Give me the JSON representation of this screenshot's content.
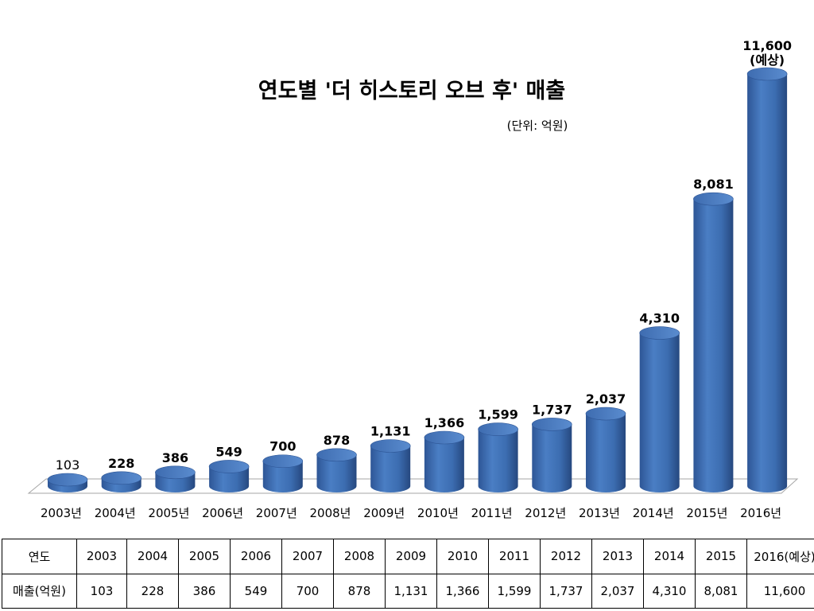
{
  "chart_data": {
    "type": "bar",
    "title": "연도별 '더 히스토리 오브 후' 매출",
    "unit_note": "(단위: 억원)",
    "categories": [
      "2003년",
      "2004년",
      "2005년",
      "2006년",
      "2007년",
      "2008년",
      "2009년",
      "2010년",
      "2011년",
      "2012년",
      "2013년",
      "2014년",
      "2015년",
      "2016년"
    ],
    "series": [
      {
        "values": [
          103,
          228,
          386,
          549,
          700,
          878,
          1131,
          1366,
          1599,
          1737,
          2037,
          4310,
          8081,
          11600
        ]
      }
    ],
    "data_labels": [
      "103",
      "228",
      "386",
      "549",
      "700",
      "878",
      "1,131",
      "1,366",
      "1,599",
      "1,737",
      "2,037",
      "4,310",
      "8,081",
      "11,600"
    ],
    "last_label_note": "(예상)",
    "ylim": [
      0,
      11600
    ],
    "bar_color": "#3f6fb5",
    "grid": false,
    "legend": "none",
    "style": "3d-cylinder"
  },
  "table": {
    "row1_header": "연도",
    "row2_header": "매출(억원)",
    "years": [
      "2003",
      "2004",
      "2005",
      "2006",
      "2007",
      "2008",
      "2009",
      "2010",
      "2011",
      "2012",
      "2013",
      "2014",
      "2015",
      "2016(예상)"
    ],
    "values": [
      "103",
      "228",
      "386",
      "549",
      "700",
      "878",
      "1,131",
      "1,366",
      "1,599",
      "1,737",
      "2,037",
      "4,310",
      "8,081",
      "11,600"
    ]
  }
}
